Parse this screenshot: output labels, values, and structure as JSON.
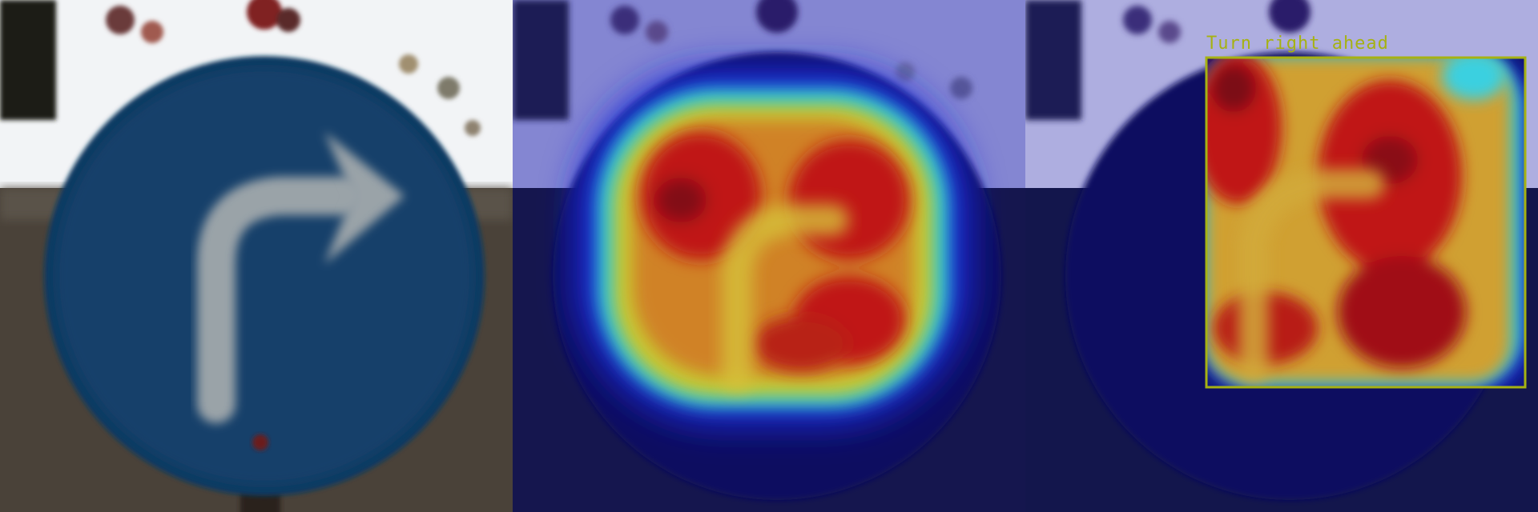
{
  "panels": [
    {
      "role": "original-image"
    },
    {
      "role": "heatmap-overlay"
    },
    {
      "role": "heatmap-with-detection"
    }
  ],
  "detection": {
    "label": "Turn right ahead",
    "box_color": "#a6b212"
  },
  "colors": {
    "sign_blue": "#0f3a62",
    "arrow_gray": "#9aa3a8",
    "sky": "#f2f4f6",
    "ground": "#4a4239",
    "heat_red": "#c01414",
    "heat_yellow": "#c8c832",
    "heat_cyan": "#2ec8d2",
    "heat_navy": "#0b1060"
  }
}
